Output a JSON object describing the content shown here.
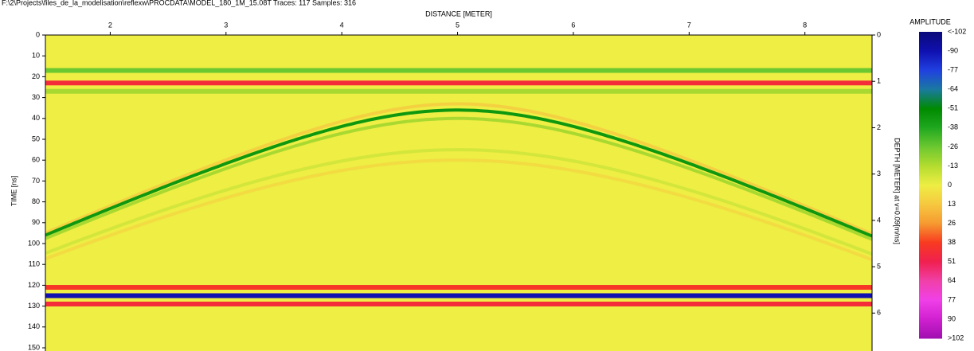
{
  "chart_data": {
    "type": "radargram",
    "header": "F:\\2\\Projects\\files_de_la_modelisation\\reflexw\\PROCDATA\\MODEL_180_1M_15.08T  Traces: 117  Samples: 316",
    "x_label": "DISTANCE [METER]",
    "y_label": "TIME [ns]",
    "y2_label": "DEPTH [METER] at v=0.09[m/ns]",
    "xlim": [
      1.44,
      8.58
    ],
    "xticks": [
      2,
      3,
      4,
      5,
      6,
      7,
      8
    ],
    "ylim": [
      0,
      150
    ],
    "yticks": [
      0,
      10,
      20,
      30,
      40,
      50,
      60,
      70,
      80,
      90,
      100,
      110,
      120,
      130,
      140,
      150
    ],
    "y2lim": [
      0,
      6.75
    ],
    "y2ticks": [
      0,
      1,
      2,
      3,
      4,
      5,
      6
    ],
    "background_amplitude": 0,
    "horizontal_reflectors": [
      {
        "time": 17,
        "amplitude": -26
      },
      {
        "time": 23,
        "amplitude": 45
      },
      {
        "time": 27,
        "amplitude": -15
      },
      {
        "time": 121,
        "amplitude": 40
      },
      {
        "time": 125,
        "amplitude": -90
      },
      {
        "time": 129,
        "amplitude": 45
      }
    ],
    "hyperbolas": [
      {
        "x0": 5,
        "t0": 33,
        "velocity": 0.08,
        "amplitude": 10
      },
      {
        "x0": 5,
        "t0": 36,
        "velocity": 0.08,
        "amplitude": -45
      },
      {
        "x0": 5,
        "t0": 40,
        "velocity": 0.08,
        "amplitude": -15
      },
      {
        "x0": 5,
        "t0": 55,
        "velocity": 0.08,
        "amplitude": -6
      },
      {
        "x0": 5,
        "t0": 60,
        "velocity": 0.08,
        "amplitude": 6
      }
    ],
    "colorbar": {
      "title": "AMPLITUDE",
      "ticks": [
        {
          "value": -102,
          "label": "<-102"
        },
        -90,
        -77,
        -64,
        -51,
        -38,
        -26,
        -13,
        0,
        13,
        26,
        38,
        51,
        64,
        77,
        90,
        {
          "value": 102,
          "label": ">102"
        }
      ],
      "colors": [
        "#0a0a7a",
        "#1010b0",
        "#2040e0",
        "#1a7aa0",
        "#008a00",
        "#20a820",
        "#6cc830",
        "#b4dc30",
        "#eeee44",
        "#f6c840",
        "#f69a30",
        "#f83a20",
        "#f02050",
        "#f040a8",
        "#f040e8",
        "#d020d0",
        "#a010b0"
      ]
    }
  }
}
